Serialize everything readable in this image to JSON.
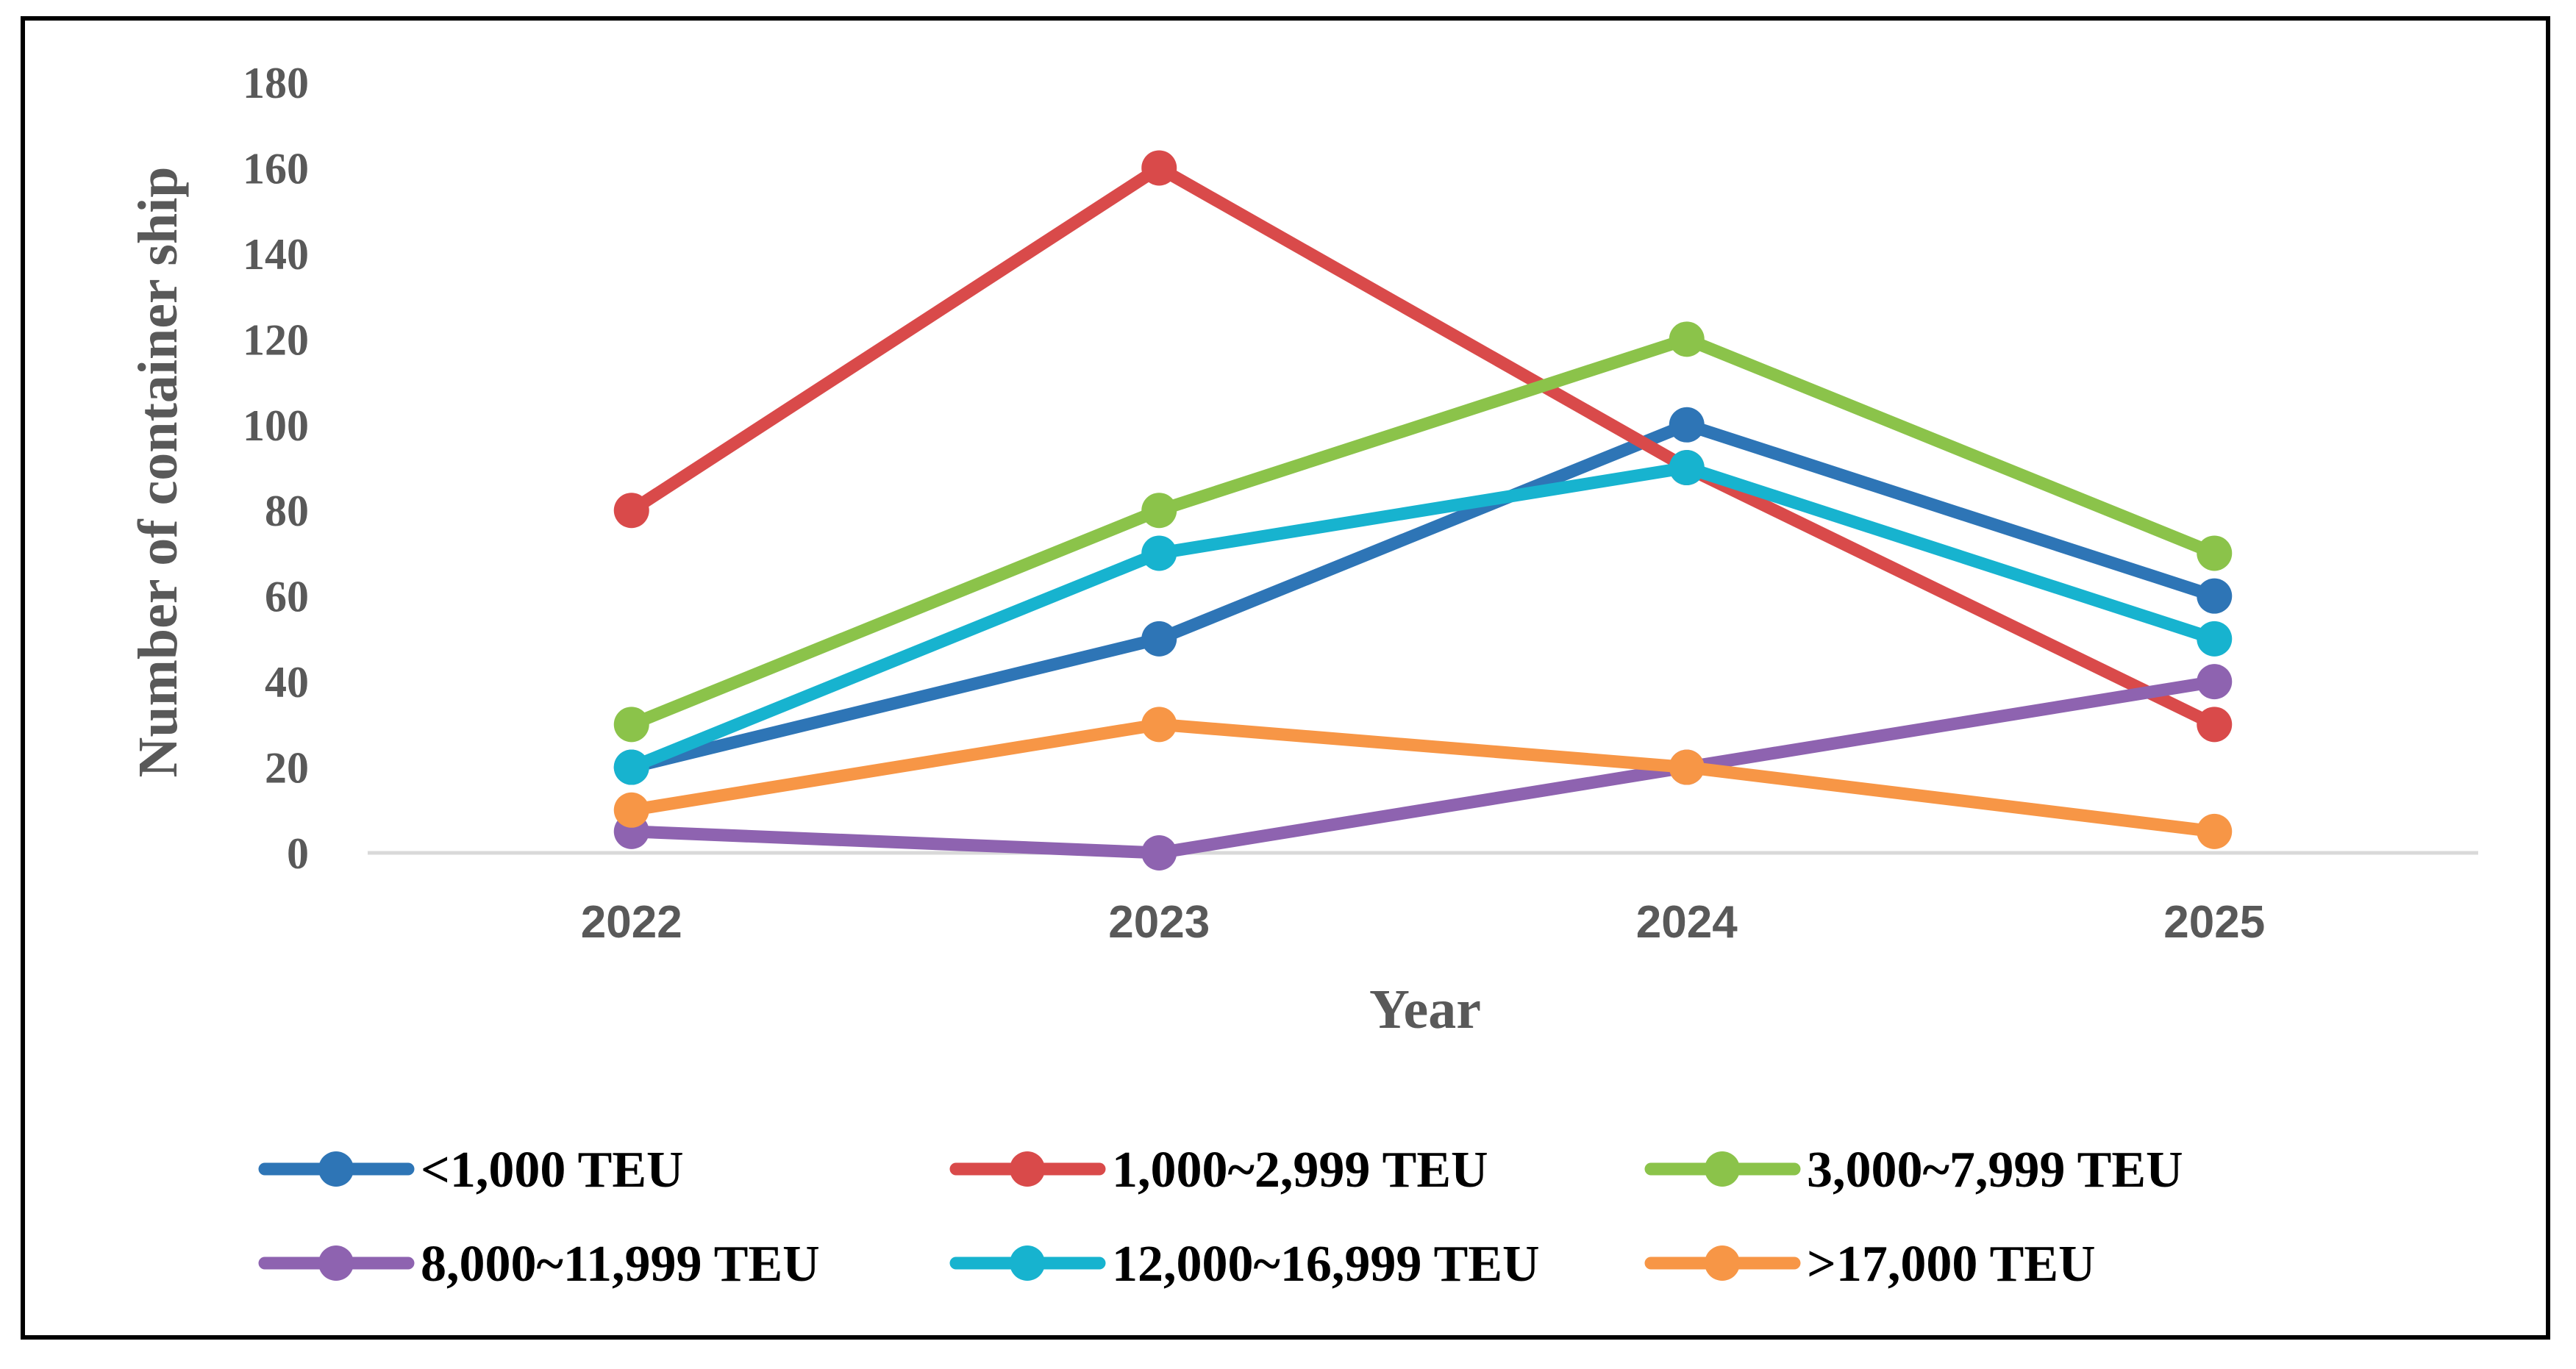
{
  "chart_data": {
    "type": "line",
    "title": "",
    "xlabel": "Year",
    "ylabel": "Number of container ship",
    "categories": [
      "2022",
      "2023",
      "2024",
      "2025"
    ],
    "ylim": [
      0,
      180
    ],
    "yticks": [
      0,
      20,
      40,
      60,
      80,
      100,
      120,
      140,
      160,
      180
    ],
    "grid": false,
    "legend_position": "bottom",
    "series": [
      {
        "name": "<1,000 TEU",
        "color": "#2E75B6",
        "values": [
          20,
          50,
          100,
          60
        ]
      },
      {
        "name": "1,000~2,999 TEU",
        "color": "#D94A4A",
        "values": [
          80,
          160,
          90,
          30
        ]
      },
      {
        "name": "3,000~7,999 TEU",
        "color": "#8BC34A",
        "values": [
          30,
          80,
          120,
          70
        ]
      },
      {
        "name": "8,000~11,999 TEU",
        "color": "#8E63B0",
        "values": [
          5,
          0,
          20,
          40
        ]
      },
      {
        "name": "12,000~16,999 TEU",
        "color": "#17B3CF",
        "values": [
          20,
          70,
          90,
          50
        ]
      },
      {
        "name": ">17,000 TEU",
        "color": "#F79646",
        "values": [
          10,
          30,
          20,
          5
        ]
      }
    ]
  }
}
